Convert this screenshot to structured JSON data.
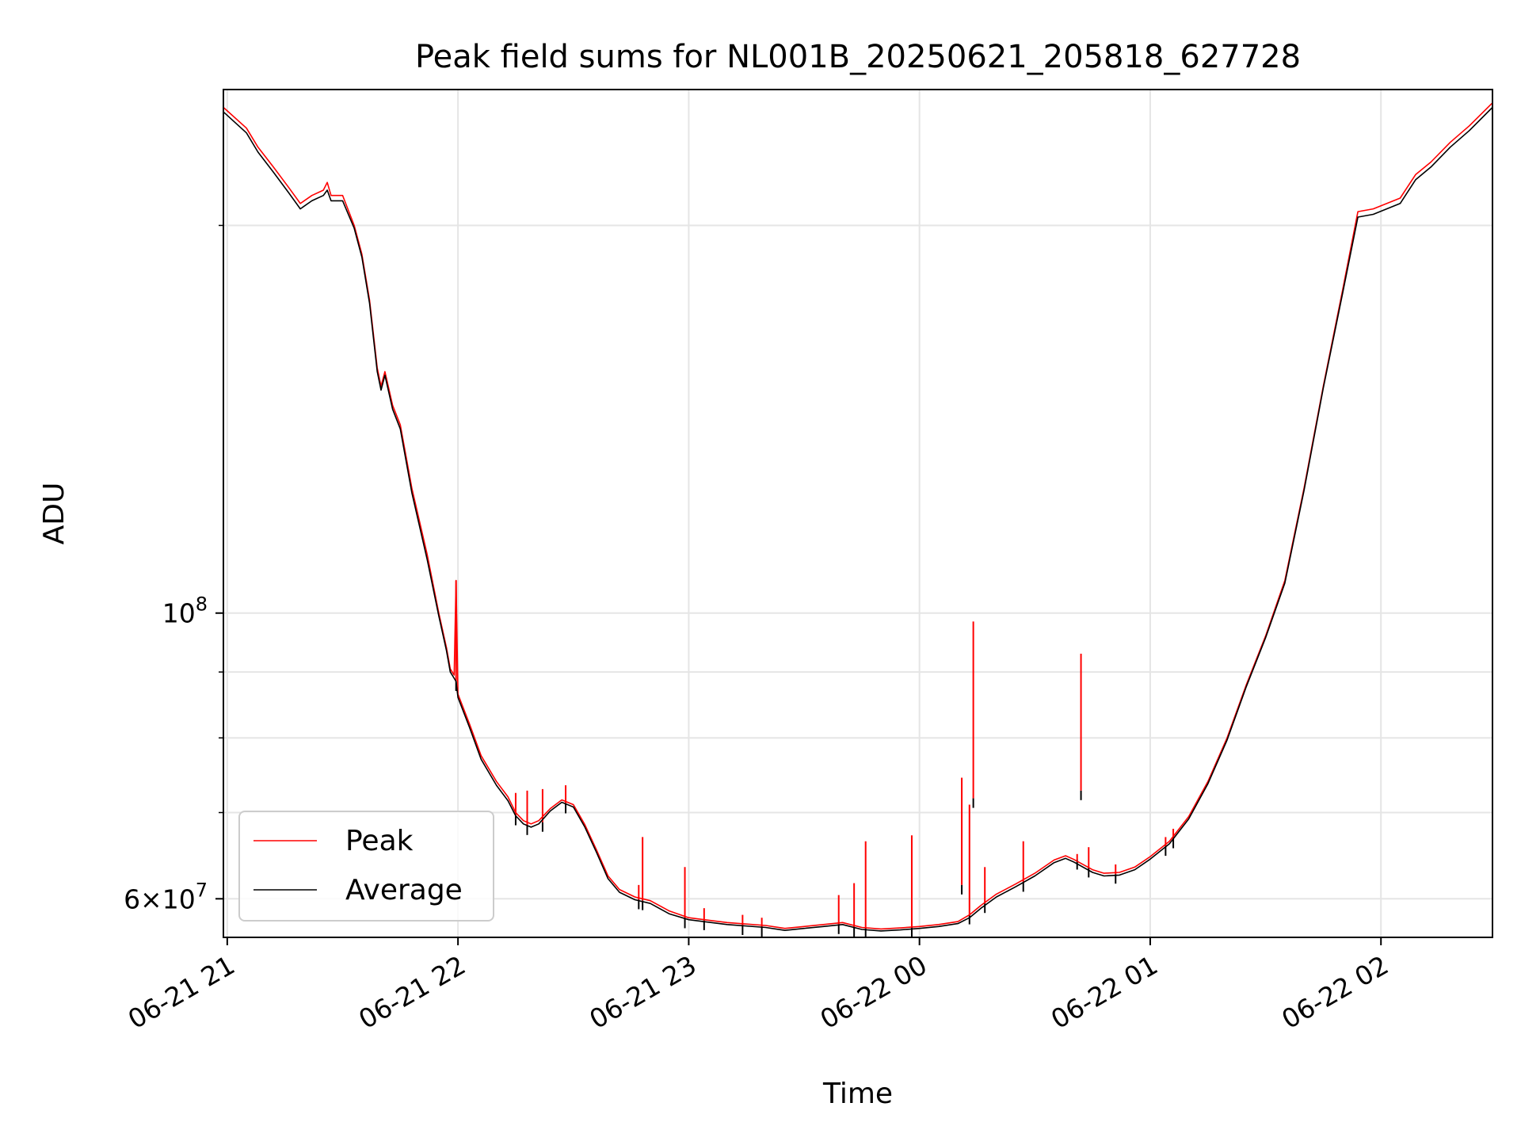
{
  "chart_data": {
    "type": "line",
    "title": "Peak field sums for NL001B_20250621_205818_627728",
    "xlabel": "Time",
    "ylabel": "ADU",
    "yscale": "log",
    "grid": true,
    "legend_position": "lower-left",
    "xlim": [
      "2025-06-21 20:59",
      "2025-06-22 02:29"
    ],
    "ylim": [
      56000000,
      255000000
    ],
    "x_ticks": [
      {
        "time": "2025-06-21 21:00",
        "label": "06-21 21"
      },
      {
        "time": "2025-06-21 22:00",
        "label": "06-21 22"
      },
      {
        "time": "2025-06-21 23:00",
        "label": "06-21 23"
      },
      {
        "time": "2025-06-22 00:00",
        "label": "06-22 00"
      },
      {
        "time": "2025-06-22 01:00",
        "label": "06-22 01"
      },
      {
        "time": "2025-06-22 02:00",
        "label": "06-22 02"
      }
    ],
    "y_major_ticks": [
      {
        "value": 60000000,
        "mantissa": "6",
        "base": "10",
        "exp": "7"
      },
      {
        "value": 100000000,
        "mantissa": "",
        "base": "10",
        "exp": "8"
      }
    ],
    "y_minor_ticks": [
      60000000,
      70000000,
      80000000,
      90000000,
      100000000,
      200000000
    ],
    "series": [
      {
        "name": "Peak",
        "color": "#ff0000",
        "points": [
          [
            "2025-06-21 20:59",
            247000000
          ],
          [
            "2025-06-21 21:05",
            238000000
          ],
          [
            "2025-06-21 21:08",
            230000000
          ],
          [
            "2025-06-21 21:12",
            222000000
          ],
          [
            "2025-06-21 21:16",
            214000000
          ],
          [
            "2025-06-21 21:19",
            208000000
          ],
          [
            "2025-06-21 21:22",
            211000000
          ],
          [
            "2025-06-21 21:25",
            213000000
          ],
          [
            "2025-06-21 21:26",
            216000000
          ],
          [
            "2025-06-21 21:27",
            211000000
          ],
          [
            "2025-06-21 21:30",
            211000000
          ],
          [
            "2025-06-21 21:33",
            200000000
          ],
          [
            "2025-06-21 21:35",
            190000000
          ],
          [
            "2025-06-21 21:37",
            175000000
          ],
          [
            "2025-06-21 21:39",
            155000000
          ],
          [
            "2025-06-21 21:40",
            150000000
          ],
          [
            "2025-06-21 21:41",
            154000000
          ],
          [
            "2025-06-21 21:43",
            145000000
          ],
          [
            "2025-06-21 21:45",
            140000000
          ],
          [
            "2025-06-21 21:48",
            125000000
          ],
          [
            "2025-06-21 21:52",
            111000000
          ],
          [
            "2025-06-21 21:55",
            100000000
          ],
          [
            "2025-06-21 21:57",
            94000000
          ],
          [
            "2025-06-21 21:58",
            90500000
          ],
          [
            "2025-06-21 21:59",
            89500000
          ],
          [
            "2025-06-21 21:59:30",
            106000000
          ],
          [
            "2025-06-21 22:00",
            86500000
          ],
          [
            "2025-06-21 22:03",
            82000000
          ],
          [
            "2025-06-21 22:06",
            77500000
          ],
          [
            "2025-06-21 22:10",
            74000000
          ],
          [
            "2025-06-21 22:13",
            72000000
          ],
          [
            "2025-06-21 22:15",
            70000000
          ],
          [
            "2025-06-21 22:17",
            69000000
          ],
          [
            "2025-06-21 22:19",
            68600000
          ],
          [
            "2025-06-21 22:21",
            69000000
          ],
          [
            "2025-06-21 22:24",
            70500000
          ],
          [
            "2025-06-21 22:27",
            71600000
          ],
          [
            "2025-06-21 22:30",
            71000000
          ],
          [
            "2025-06-21 22:33",
            68500000
          ],
          [
            "2025-06-21 22:36",
            65500000
          ],
          [
            "2025-06-21 22:39",
            62500000
          ],
          [
            "2025-06-21 22:42",
            61000000
          ],
          [
            "2025-06-21 22:46",
            60200000
          ],
          [
            "2025-06-21 22:50",
            59800000
          ],
          [
            "2025-06-21 22:55",
            58700000
          ],
          [
            "2025-06-21 23:00",
            58000000
          ],
          [
            "2025-06-21 23:10",
            57500000
          ],
          [
            "2025-06-21 23:20",
            57200000
          ],
          [
            "2025-06-21 23:25",
            56900000
          ],
          [
            "2025-06-21 23:30",
            57100000
          ],
          [
            "2025-06-21 23:35",
            57300000
          ],
          [
            "2025-06-21 23:40",
            57500000
          ],
          [
            "2025-06-21 23:45",
            57000000
          ],
          [
            "2025-06-21 23:50",
            56850000
          ],
          [
            "2025-06-21 23:55",
            56950000
          ],
          [
            "2025-06-22 00:00",
            57100000
          ],
          [
            "2025-06-22 00:05",
            57300000
          ],
          [
            "2025-06-22 00:10",
            57600000
          ],
          [
            "2025-06-22 00:13",
            58300000
          ],
          [
            "2025-06-22 00:16",
            59300000
          ],
          [
            "2025-06-22 00:20",
            60500000
          ],
          [
            "2025-06-22 00:25",
            61600000
          ],
          [
            "2025-06-22 00:30",
            62800000
          ],
          [
            "2025-06-22 00:35",
            64300000
          ],
          [
            "2025-06-22 00:38",
            64800000
          ],
          [
            "2025-06-22 00:40",
            64400000
          ],
          [
            "2025-06-22 00:45",
            63200000
          ],
          [
            "2025-06-22 00:48",
            62800000
          ],
          [
            "2025-06-22 00:52",
            62900000
          ],
          [
            "2025-06-22 00:56",
            63500000
          ],
          [
            "2025-06-22 01:00",
            64700000
          ],
          [
            "2025-06-22 01:05",
            66500000
          ],
          [
            "2025-06-22 01:10",
            69500000
          ],
          [
            "2025-06-22 01:15",
            74000000
          ],
          [
            "2025-06-22 01:20",
            80000000
          ],
          [
            "2025-06-22 01:25",
            88000000
          ],
          [
            "2025-06-22 01:30",
            96000000
          ],
          [
            "2025-06-22 01:35",
            106000000
          ],
          [
            "2025-06-22 01:40",
            125000000
          ],
          [
            "2025-06-22 01:45",
            150000000
          ],
          [
            "2025-06-22 01:50",
            178000000
          ],
          [
            "2025-06-22 01:54",
            205000000
          ],
          [
            "2025-06-22 01:58",
            206000000
          ],
          [
            "2025-06-22 02:05",
            210000000
          ],
          [
            "2025-06-22 02:09",
            219000000
          ],
          [
            "2025-06-22 02:13",
            224000000
          ],
          [
            "2025-06-22 02:18",
            232000000
          ],
          [
            "2025-06-22 02:23",
            239000000
          ],
          [
            "2025-06-22 02:29",
            249000000
          ]
        ]
      },
      {
        "name": "Average",
        "color": "#000000",
        "points": [
          [
            "2025-06-21 20:59",
            245000000
          ],
          [
            "2025-06-21 21:05",
            236000000
          ],
          [
            "2025-06-21 21:08",
            228000000
          ],
          [
            "2025-06-21 21:12",
            220000000
          ],
          [
            "2025-06-21 21:16",
            212000000
          ],
          [
            "2025-06-21 21:19",
            206000000
          ],
          [
            "2025-06-21 21:22",
            209000000
          ],
          [
            "2025-06-21 21:25",
            211000000
          ],
          [
            "2025-06-21 21:26",
            213000000
          ],
          [
            "2025-06-21 21:27",
            209000000
          ],
          [
            "2025-06-21 21:30",
            209000000
          ],
          [
            "2025-06-21 21:33",
            199000000
          ],
          [
            "2025-06-21 21:35",
            189000000
          ],
          [
            "2025-06-21 21:37",
            174000000
          ],
          [
            "2025-06-21 21:39",
            154000000
          ],
          [
            "2025-06-21 21:40",
            149000000
          ],
          [
            "2025-06-21 21:41",
            153000000
          ],
          [
            "2025-06-21 21:43",
            144000000
          ],
          [
            "2025-06-21 21:45",
            139000000
          ],
          [
            "2025-06-21 21:48",
            124000000
          ],
          [
            "2025-06-21 21:52",
            110000000
          ],
          [
            "2025-06-21 21:55",
            99500000
          ],
          [
            "2025-06-21 21:57",
            93500000
          ],
          [
            "2025-06-21 21:58",
            90000000
          ],
          [
            "2025-06-21 21:59",
            89000000
          ],
          [
            "2025-06-21 21:59:30",
            88500000
          ],
          [
            "2025-06-21 22:00",
            86000000
          ],
          [
            "2025-06-21 22:03",
            81500000
          ],
          [
            "2025-06-21 22:06",
            77000000
          ],
          [
            "2025-06-21 22:10",
            73500000
          ],
          [
            "2025-06-21 22:13",
            71500000
          ],
          [
            "2025-06-21 22:15",
            69600000
          ],
          [
            "2025-06-21 22:17",
            68600000
          ],
          [
            "2025-06-21 22:19",
            68200000
          ],
          [
            "2025-06-21 22:21",
            68600000
          ],
          [
            "2025-06-21 22:24",
            70200000
          ],
          [
            "2025-06-21 22:27",
            71300000
          ],
          [
            "2025-06-21 22:30",
            70700000
          ],
          [
            "2025-06-21 22:33",
            68200000
          ],
          [
            "2025-06-21 22:36",
            65200000
          ],
          [
            "2025-06-21 22:39",
            62200000
          ],
          [
            "2025-06-21 22:42",
            60700000
          ],
          [
            "2025-06-21 22:46",
            59900000
          ],
          [
            "2025-06-21 22:50",
            59500000
          ],
          [
            "2025-06-21 22:55",
            58400000
          ],
          [
            "2025-06-21 23:00",
            57800000
          ],
          [
            "2025-06-21 23:10",
            57300000
          ],
          [
            "2025-06-21 23:20",
            57000000
          ],
          [
            "2025-06-21 23:25",
            56700000
          ],
          [
            "2025-06-21 23:30",
            56900000
          ],
          [
            "2025-06-21 23:35",
            57100000
          ],
          [
            "2025-06-21 23:40",
            57300000
          ],
          [
            "2025-06-21 23:45",
            56800000
          ],
          [
            "2025-06-21 23:50",
            56650000
          ],
          [
            "2025-06-21 23:55",
            56750000
          ],
          [
            "2025-06-22 00:00",
            56900000
          ],
          [
            "2025-06-22 00:05",
            57100000
          ],
          [
            "2025-06-22 00:10",
            57400000
          ],
          [
            "2025-06-22 00:13",
            58000000
          ],
          [
            "2025-06-22 00:16",
            59000000
          ],
          [
            "2025-06-22 00:20",
            60200000
          ],
          [
            "2025-06-22 00:25",
            61300000
          ],
          [
            "2025-06-22 00:30",
            62500000
          ],
          [
            "2025-06-22 00:35",
            64000000
          ],
          [
            "2025-06-22 00:38",
            64500000
          ],
          [
            "2025-06-22 00:40",
            64100000
          ],
          [
            "2025-06-22 00:45",
            62900000
          ],
          [
            "2025-06-22 00:48",
            62500000
          ],
          [
            "2025-06-22 00:52",
            62600000
          ],
          [
            "2025-06-22 00:56",
            63200000
          ],
          [
            "2025-06-22 01:00",
            64400000
          ],
          [
            "2025-06-22 01:05",
            66200000
          ],
          [
            "2025-06-22 01:10",
            69200000
          ],
          [
            "2025-06-22 01:15",
            73700000
          ],
          [
            "2025-06-22 01:20",
            79700000
          ],
          [
            "2025-06-22 01:25",
            87700000
          ],
          [
            "2025-06-22 01:30",
            95700000
          ],
          [
            "2025-06-22 01:35",
            105500000
          ],
          [
            "2025-06-22 01:40",
            124500000
          ],
          [
            "2025-06-22 01:45",
            149500000
          ],
          [
            "2025-06-22 01:50",
            177000000
          ],
          [
            "2025-06-22 01:54",
            203000000
          ],
          [
            "2025-06-22 01:58",
            204000000
          ],
          [
            "2025-06-22 02:05",
            208000000
          ],
          [
            "2025-06-22 02:09",
            217000000
          ],
          [
            "2025-06-22 02:13",
            222000000
          ],
          [
            "2025-06-22 02:18",
            230000000
          ],
          [
            "2025-06-22 02:23",
            237000000
          ],
          [
            "2025-06-22 02:29",
            247000000
          ]
        ]
      }
    ],
    "spikes": [
      {
        "time": "2025-06-21 21:59:30",
        "peak": 106000000,
        "average": 88500000
      },
      {
        "time": "2025-06-21 22:15",
        "peak": 72500000,
        "average": 69600000
      },
      {
        "time": "2025-06-21 22:18",
        "peak": 72800000,
        "average": 68400000
      },
      {
        "time": "2025-06-21 22:22",
        "peak": 73000000,
        "average": 68800000
      },
      {
        "time": "2025-06-21 22:28",
        "peak": 73500000,
        "average": 71100000
      },
      {
        "time": "2025-06-21 22:47",
        "peak": 61500000,
        "average": 59900000
      },
      {
        "time": "2025-06-21 22:48",
        "peak": 67000000,
        "average": 59800000
      },
      {
        "time": "2025-06-21 22:59",
        "peak": 63500000,
        "average": 57900000
      },
      {
        "time": "2025-06-21 23:04",
        "peak": 59000000,
        "average": 57700000
      },
      {
        "time": "2025-06-21 23:14",
        "peak": 58300000,
        "average": 57200000
      },
      {
        "time": "2025-06-21 23:19",
        "peak": 58000000,
        "average": 57000000
      },
      {
        "time": "2025-06-21 23:39",
        "peak": 60400000,
        "average": 57300000
      },
      {
        "time": "2025-06-21 23:43",
        "peak": 61700000,
        "average": 57000000
      },
      {
        "time": "2025-06-21 23:46",
        "peak": 66500000,
        "average": 56900000
      },
      {
        "time": "2025-06-21 23:58",
        "peak": 67200000,
        "average": 57000000
      },
      {
        "time": "2025-06-22 00:11",
        "peak": 74500000,
        "average": 61500000
      },
      {
        "time": "2025-06-22 00:13",
        "peak": 71000000,
        "average": 58300000
      },
      {
        "time": "2025-06-22 00:14",
        "peak": 98500000,
        "average": 71800000
      },
      {
        "time": "2025-06-22 00:17",
        "peak": 63500000,
        "average": 59500000
      },
      {
        "time": "2025-06-22 00:27",
        "peak": 66500000,
        "average": 61800000
      },
      {
        "time": "2025-06-22 00:41",
        "peak": 65000000,
        "average": 64300000
      },
      {
        "time": "2025-06-22 00:44",
        "peak": 65800000,
        "average": 63400000
      },
      {
        "time": "2025-06-22 00:42",
        "peak": 93000000,
        "average": 72800000
      },
      {
        "time": "2025-06-22 00:51",
        "peak": 63800000,
        "average": 62700000
      },
      {
        "time": "2025-06-22 01:04",
        "peak": 67000000,
        "average": 65900000
      },
      {
        "time": "2025-06-22 01:06",
        "peak": 68000000,
        "average": 66800000
      }
    ]
  }
}
